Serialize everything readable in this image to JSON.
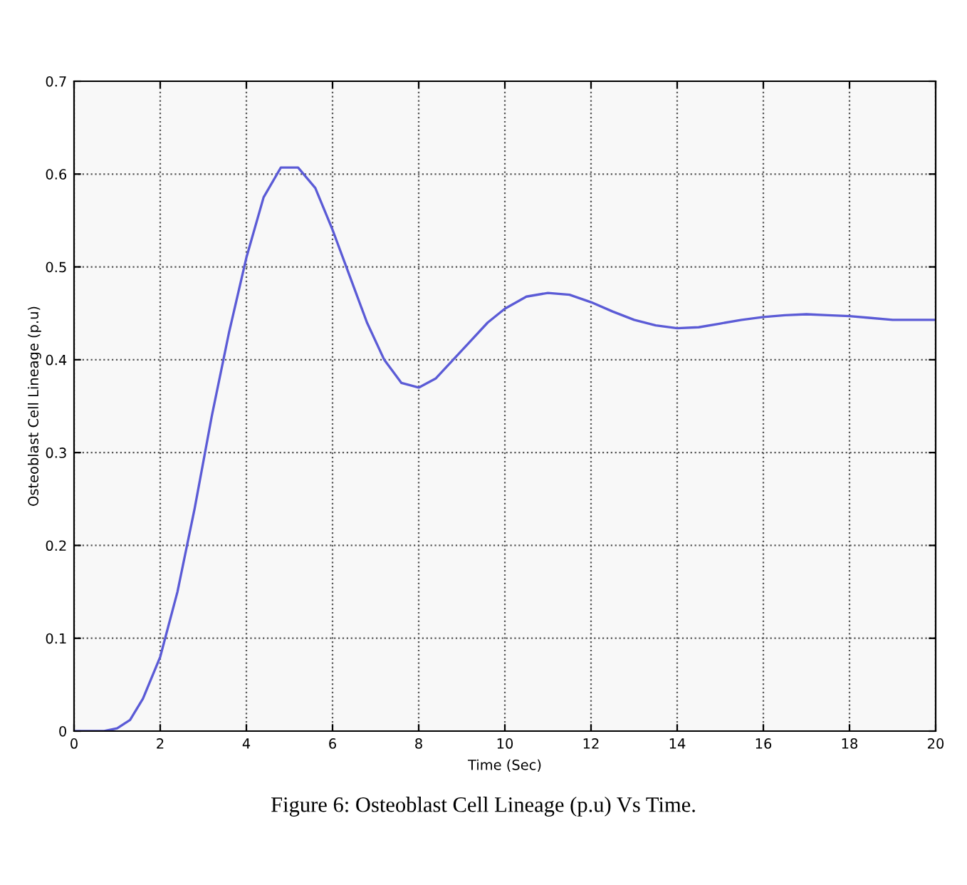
{
  "chart_data": {
    "type": "line",
    "xlabel": "Time (Sec)",
    "ylabel": "Osteoblast Cell Lineage (p.u)",
    "annotations": [
      "Figure 6: Osteoblast Cell Lineage (p.u) Vs Time."
    ],
    "series": [
      {
        "color": "#5b5bd6",
        "x": [
          0,
          0.7,
          1,
          1.3,
          1.6,
          2,
          2.4,
          2.8,
          3.2,
          3.6,
          4,
          4.4,
          4.8,
          5.2,
          5.6,
          6,
          6.4,
          6.8,
          7.2,
          7.6,
          8,
          8.4,
          8.8,
          9.2,
          9.6,
          10,
          10.5,
          11,
          11.5,
          12,
          12.5,
          13,
          13.5,
          14,
          14.5,
          15,
          15.5,
          16,
          16.5,
          17,
          17.5,
          18,
          18.5,
          19,
          20
        ],
        "values": [
          0,
          0,
          0.003,
          0.012,
          0.035,
          0.08,
          0.15,
          0.24,
          0.34,
          0.43,
          0.51,
          0.575,
          0.607,
          0.607,
          0.585,
          0.54,
          0.49,
          0.44,
          0.4,
          0.375,
          0.37,
          0.38,
          0.4,
          0.42,
          0.44,
          0.455,
          0.468,
          0.472,
          0.47,
          0.462,
          0.452,
          0.443,
          0.437,
          0.434,
          0.435,
          0.439,
          0.443,
          0.446,
          0.448,
          0.449,
          0.448,
          0.447,
          0.445,
          0.443,
          0.443
        ]
      }
    ],
    "xlim": [
      0,
      20
    ],
    "xticks": [
      0,
      2,
      4,
      6,
      8,
      10,
      12,
      14,
      16,
      18,
      20
    ],
    "ylim": [
      0,
      0.7
    ],
    "yticks": [
      0,
      0.1,
      0.2,
      0.3,
      0.4,
      0.5,
      0.6,
      0.7
    ],
    "grid": true,
    "line_style": "solid",
    "marker": "none"
  }
}
